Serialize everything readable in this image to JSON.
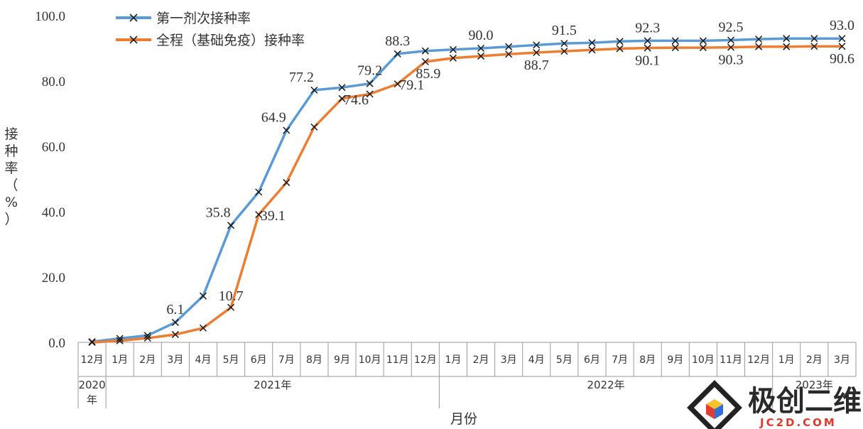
{
  "chart_data": {
    "type": "line",
    "ylabel": "接种率（%）",
    "xlabel": "月份",
    "ylim": [
      0,
      100
    ],
    "yticks": [
      "0.0",
      "20.0",
      "40.0",
      "60.0",
      "80.0",
      "100.0"
    ],
    "categories": [
      "12月",
      "1月",
      "2月",
      "3月",
      "4月",
      "5月",
      "6月",
      "7月",
      "8月",
      "9月",
      "10月",
      "11月",
      "12月",
      "1月",
      "2月",
      "3月",
      "4月",
      "5月",
      "6月",
      "7月",
      "8月",
      "9月",
      "10月",
      "11月",
      "12月",
      "1月",
      "2月",
      "3月"
    ],
    "year_groups": [
      {
        "label": "2020年",
        "start": 0,
        "count": 1
      },
      {
        "label": "2021年",
        "start": 1,
        "count": 12
      },
      {
        "label": "2022年",
        "start": 13,
        "count": 12
      },
      {
        "label": "2023年",
        "start": 25,
        "count": 3
      }
    ],
    "series": [
      {
        "name": "第一剂次接种率",
        "color": "#5b9bd5",
        "values": [
          0.2,
          1.2,
          2.1,
          6.1,
          14.2,
          35.8,
          46.0,
          64.9,
          77.2,
          78.0,
          79.2,
          88.3,
          89.2,
          89.6,
          90.0,
          90.5,
          91.0,
          91.5,
          91.7,
          92.1,
          92.3,
          92.3,
          92.3,
          92.5,
          92.8,
          93.0,
          93.0,
          93.0
        ],
        "labeled": [
          3,
          5,
          7,
          8,
          10,
          11,
          14,
          17,
          20,
          23,
          27
        ]
      },
      {
        "name": "全程（基础免疫）接种率",
        "color": "#ed7d31",
        "values": [
          0.0,
          0.5,
          1.3,
          2.4,
          4.4,
          10.7,
          39.1,
          48.9,
          65.9,
          74.6,
          76.0,
          79.1,
          85.9,
          87.0,
          87.6,
          88.2,
          88.7,
          89.1,
          89.5,
          89.9,
          90.1,
          90.2,
          90.2,
          90.3,
          90.5,
          90.5,
          90.6,
          90.6
        ],
        "labeled": [
          5,
          6,
          9,
          11,
          12,
          16,
          20,
          23,
          27
        ]
      }
    ],
    "grid": false,
    "legend": "top-left"
  },
  "watermark": {
    "name": "极创二维",
    "url": "JC2D.COM"
  }
}
